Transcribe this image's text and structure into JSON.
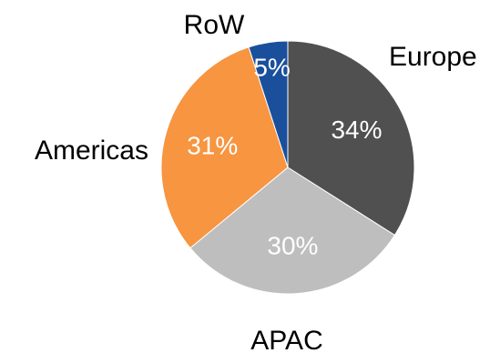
{
  "chart_data": {
    "type": "pie",
    "categories": [
      "Europe",
      "APAC",
      "Americas",
      "RoW"
    ],
    "values": [
      34,
      30,
      31,
      5
    ],
    "data_labels": [
      "34%",
      "30%",
      "31%",
      "5%"
    ],
    "colors": [
      "#505050",
      "#bebebe",
      "#f79540",
      "#1a4f9c"
    ],
    "data_label_colors": [
      "#ffffff",
      "#ffffff",
      "#ffffff",
      "#ffffff"
    ],
    "title": "",
    "start_angle_deg": 0,
    "direction": "clockwise",
    "legend": "none"
  }
}
